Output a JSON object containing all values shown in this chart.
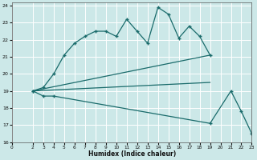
{
  "xlabel": "Humidex (Indice chaleur)",
  "bg_color": "#cce8e8",
  "grid_color": "#ffffff",
  "line_color": "#1a6b6b",
  "xlim": [
    0,
    23
  ],
  "ylim": [
    16,
    24.2
  ],
  "xticks": [
    0,
    2,
    3,
    4,
    5,
    6,
    7,
    8,
    9,
    10,
    11,
    12,
    13,
    14,
    15,
    16,
    17,
    18,
    19,
    20,
    21,
    22,
    23
  ],
  "yticks": [
    16,
    17,
    18,
    19,
    20,
    21,
    22,
    23,
    24
  ],
  "line1_x": [
    2,
    3,
    4,
    5,
    6,
    7,
    8,
    9,
    10,
    11,
    12,
    13,
    14,
    15,
    16,
    17,
    18,
    19
  ],
  "line1_y": [
    19.0,
    19.2,
    20.0,
    21.1,
    21.8,
    22.2,
    22.5,
    22.5,
    22.2,
    23.2,
    22.5,
    21.8,
    23.9,
    23.5,
    22.1,
    22.8,
    22.2,
    21.1
  ],
  "line2_x": [
    2,
    19
  ],
  "line2_y": [
    19.0,
    21.1
  ],
  "line3_x": [
    2,
    19
  ],
  "line3_y": [
    19.0,
    19.5
  ],
  "line4_x": [
    2,
    3,
    4,
    19,
    21,
    22,
    23
  ],
  "line4_y": [
    19.0,
    18.7,
    18.7,
    17.1,
    19.0,
    17.8,
    16.5
  ]
}
